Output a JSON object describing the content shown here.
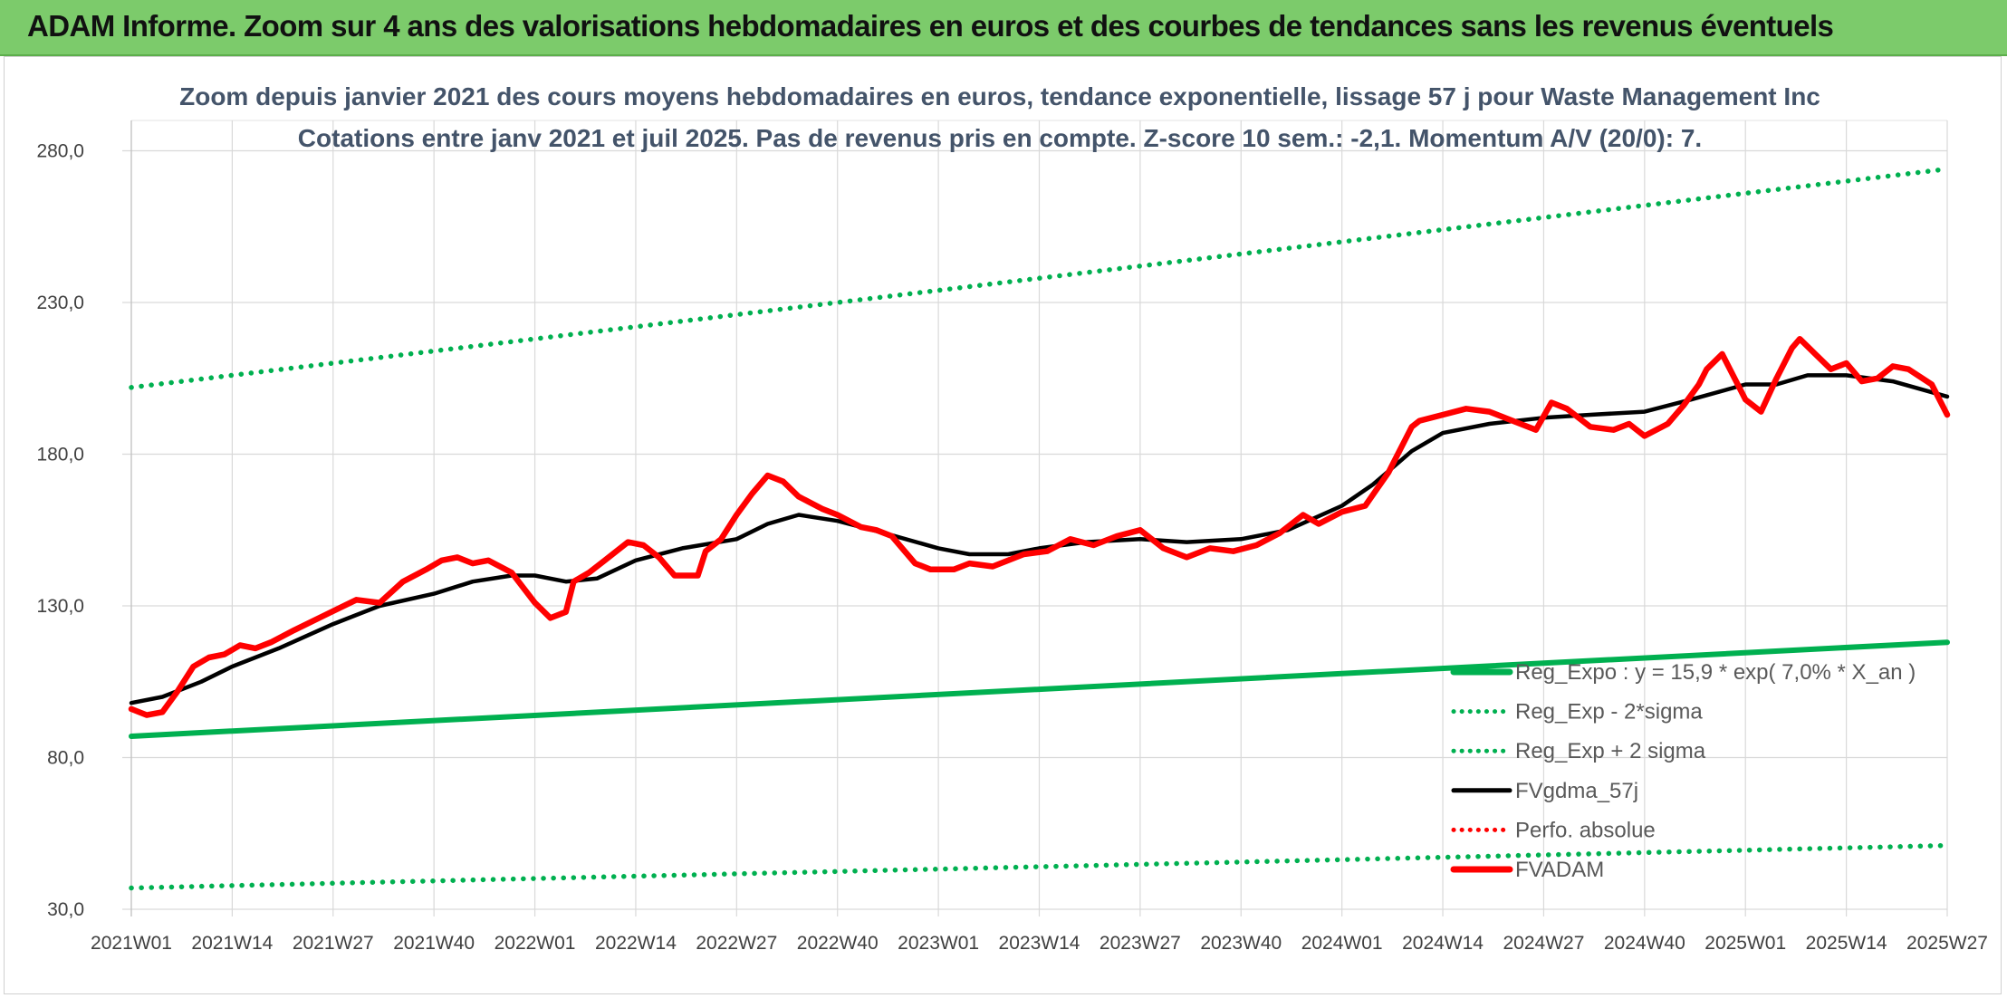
{
  "banner": {
    "title": "ADAM Informe. Zoom sur 4 ans des valorisations hebdomadaires en euros et des courbes de tendances sans les revenus éventuels"
  },
  "colors": {
    "banner": "#7ccb6b",
    "trend": "#00b050",
    "smoothed": "#000000",
    "price": "#ff0000"
  },
  "chart_data": {
    "type": "line",
    "title": "Zoom depuis janvier 2021 des cours moyens hebdomadaires en euros, tendance exponentielle, lissage 57 j pour Waste Management Inc",
    "subtitle": "Cotations entre janv 2021 et juil 2025. Pas de revenus pris en compte. Z-score 10 sem.: -2,1. Momentum A/V (20/0): 7.",
    "xlabel": "",
    "ylabel": "",
    "ylim": [
      30,
      290
    ],
    "yticks": [
      "30,0",
      "80,0",
      "130,0",
      "180,0",
      "230,0",
      "280,0"
    ],
    "xticks": [
      "2021W01",
      "2021W14",
      "2021W27",
      "2021W40",
      "2022W01",
      "2022W14",
      "2022W27",
      "2022W40",
      "2023W01",
      "2023W14",
      "2023W27",
      "2023W40",
      "2024W01",
      "2024W14",
      "2024W27",
      "2024W40",
      "2025W01",
      "2025W14",
      "2025W27"
    ],
    "grid": true,
    "legend_position": "bottom-right",
    "series": [
      {
        "name": "Reg_Expo : y = 15,9 * exp( 7,0% * X_an )",
        "style": "solid-thick",
        "color": "#00b050",
        "x": [
          "2021W01",
          "2025W27"
        ],
        "values": [
          87.0,
          118.0
        ]
      },
      {
        "name": "Reg_Exp - 2*sigma",
        "style": "dotted",
        "color": "#00b050",
        "x": [
          "2021W01",
          "2025W27"
        ],
        "values": [
          37.0,
          51.0
        ]
      },
      {
        "name": "Reg_Exp + 2 sigma",
        "style": "dotted",
        "color": "#00b050",
        "x": [
          "2021W01",
          "2025W27"
        ],
        "values": [
          202.0,
          274.0
        ]
      },
      {
        "name": "FVgdma_57j",
        "style": "solid",
        "color": "#000000",
        "x": [
          "2021W01",
          "2021W05",
          "2021W10",
          "2021W14",
          "2021W20",
          "2021W27",
          "2021W33",
          "2021W40",
          "2021W45",
          "2021W50",
          "2022W01",
          "2022W05",
          "2022W09",
          "2022W14",
          "2022W20",
          "2022W27",
          "2022W31",
          "2022W35",
          "2022W40",
          "2022W46",
          "2023W01",
          "2023W05",
          "2023W10",
          "2023W14",
          "2023W20",
          "2023W27",
          "2023W33",
          "2023W40",
          "2023W46",
          "2024W01",
          "2024W05",
          "2024W10",
          "2024W14",
          "2024W20",
          "2024W27",
          "2024W33",
          "2024W40",
          "2024W46",
          "2025W01",
          "2025W05",
          "2025W09",
          "2025W14",
          "2025W20",
          "2025W27"
        ],
        "values": [
          98,
          100,
          105,
          110,
          116,
          124,
          130,
          134,
          138,
          140,
          140,
          138,
          139,
          145,
          149,
          152,
          157,
          160,
          158,
          154,
          149,
          147,
          147,
          149,
          151,
          152,
          151,
          152,
          155,
          163,
          170,
          181,
          187,
          190,
          192,
          193,
          194,
          198,
          203,
          203,
          206,
          206,
          204,
          199
        ]
      },
      {
        "name": "Perfo. absolue",
        "style": "dotted",
        "color": "#ff0000",
        "x": [],
        "values": []
      },
      {
        "name": "FVADAM",
        "style": "solid-thick",
        "color": "#ff0000",
        "x": [
          "2021W01",
          "2021W03",
          "2021W05",
          "2021W07",
          "2021W09",
          "2021W11",
          "2021W13",
          "2021W15",
          "2021W17",
          "2021W19",
          "2021W22",
          "2021W26",
          "2021W30",
          "2021W33",
          "2021W36",
          "2021W39",
          "2021W41",
          "2021W43",
          "2021W45",
          "2021W47",
          "2021W50",
          "2022W01",
          "2022W03",
          "2022W05",
          "2022W06",
          "2022W08",
          "2022W10",
          "2022W13",
          "2022W15",
          "2022W17",
          "2022W19",
          "2022W22",
          "2022W23",
          "2022W25",
          "2022W27",
          "2022W29",
          "2022W31",
          "2022W33",
          "2022W35",
          "2022W38",
          "2022W40",
          "2022W43",
          "2022W45",
          "2022W47",
          "2022W50",
          "2022W52",
          "2023W03",
          "2023W05",
          "2023W08",
          "2023W12",
          "2023W15",
          "2023W18",
          "2023W21",
          "2023W24",
          "2023W27",
          "2023W30",
          "2023W33",
          "2023W36",
          "2023W39",
          "2023W42",
          "2023W45",
          "2023W48",
          "2023W50",
          "2024W01",
          "2024W04",
          "2024W07",
          "2024W10",
          "2024W11",
          "2024W14",
          "2024W17",
          "2024W20",
          "2024W24",
          "2024W26",
          "2024W28",
          "2024W30",
          "2024W33",
          "2024W36",
          "2024W38",
          "2024W40",
          "2024W43",
          "2024W45",
          "2024W47",
          "2024W48",
          "2024W50",
          "2025W01",
          "2025W03",
          "2025W05",
          "2025W07",
          "2025W08",
          "2025W10",
          "2025W12",
          "2025W14",
          "2025W16",
          "2025W18",
          "2025W20",
          "2025W22",
          "2025W25",
          "2025W27"
        ],
        "values": [
          96,
          94,
          95,
          102,
          110,
          113,
          114,
          117,
          116,
          118,
          122,
          127,
          132,
          131,
          138,
          142,
          145,
          146,
          144,
          145,
          141,
          131,
          126,
          128,
          138,
          141,
          145,
          151,
          150,
          146,
          140,
          140,
          148,
          152,
          160,
          167,
          173,
          171,
          166,
          162,
          160,
          156,
          155,
          153,
          144,
          142,
          142,
          144,
          143,
          147,
          148,
          152,
          150,
          153,
          155,
          149,
          146,
          149,
          148,
          150,
          154,
          160,
          157,
          161,
          163,
          174,
          189,
          191,
          193,
          195,
          194,
          190,
          188,
          197,
          195,
          189,
          188,
          190,
          186,
          190,
          196,
          203,
          208,
          213,
          198,
          194,
          205,
          215,
          218,
          213,
          208,
          210,
          204,
          205,
          209,
          208,
          203,
          193
        ]
      }
    ]
  }
}
